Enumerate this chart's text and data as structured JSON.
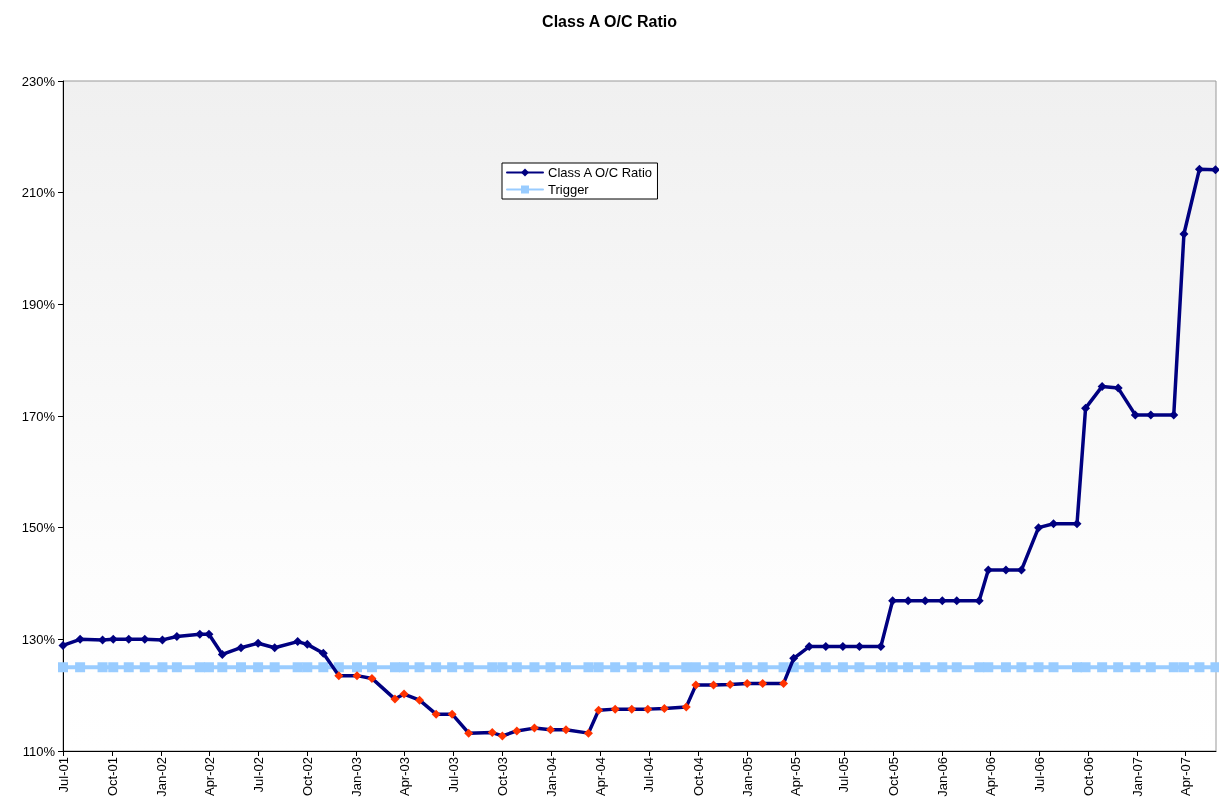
{
  "chart_data": {
    "type": "line",
    "title": "Class A O/C Ratio",
    "x": [
      "2001-07-01",
      "2001-08-02",
      "2001-09-13",
      "2001-10-03",
      "2001-11-01",
      "2001-12-01",
      "2002-01-03",
      "2002-01-30",
      "2002-03-14",
      "2002-03-31",
      "2002-04-25",
      "2002-05-30",
      "2002-07-01",
      "2002-08-01",
      "2002-09-13",
      "2002-10-01",
      "2002-10-31",
      "2002-11-29",
      "2003-01-02",
      "2003-01-30",
      "2003-03-14",
      "2003-03-31",
      "2003-04-29",
      "2003-05-30",
      "2003-06-29",
      "2003-07-30",
      "2003-09-12",
      "2003-10-01",
      "2003-10-28",
      "2003-11-30",
      "2003-12-30",
      "2004-01-28",
      "2004-03-10",
      "2004-03-29",
      "2004-04-29",
      "2004-05-30",
      "2004-06-29",
      "2004-07-30",
      "2004-09-09",
      "2004-09-27",
      "2004-10-30",
      "2004-11-30",
      "2005-01-01",
      "2005-01-30",
      "2005-03-10",
      "2005-03-29",
      "2005-04-27",
      "2005-05-28",
      "2005-06-29",
      "2005-07-30",
      "2005-09-08",
      "2005-09-30",
      "2005-10-29",
      "2005-11-30",
      "2006-01-01",
      "2006-01-28",
      "2006-03-11",
      "2006-03-28",
      "2006-04-30",
      "2006-05-29",
      "2006-06-30",
      "2006-07-28",
      "2006-09-10",
      "2006-09-26",
      "2006-10-27",
      "2006-11-26",
      "2006-12-28",
      "2007-01-26",
      "2007-03-10",
      "2007-03-29",
      "2007-04-27",
      "2007-05-27"
    ],
    "series": [
      {
        "name": "Class A O/C Ratio",
        "color": "#000080",
        "marker": "diamond",
        "values": [
          128.9,
          130.0,
          129.9,
          130.0,
          130.0,
          130.0,
          129.9,
          130.5,
          130.9,
          130.9,
          127.3,
          128.5,
          129.3,
          128.5,
          129.6,
          129.1,
          127.5,
          123.5,
          123.5,
          123.0,
          119.3,
          120.2,
          119.1,
          116.6,
          116.6,
          113.2,
          113.3,
          112.7,
          113.6,
          114.1,
          113.8,
          113.8,
          113.2,
          117.3,
          117.5,
          117.5,
          117.5,
          117.6,
          117.9,
          121.8,
          121.8,
          121.9,
          122.1,
          122.1,
          122.1,
          126.6,
          128.7,
          128.7,
          128.7,
          128.7,
          128.7,
          136.9,
          136.9,
          136.9,
          136.9,
          136.9,
          136.9,
          142.4,
          142.4,
          142.4,
          150.0,
          150.7,
          150.7,
          171.4,
          175.3,
          175.0,
          170.2,
          170.2,
          170.2,
          202.6,
          214.2,
          214.1
        ],
        "colors": [
          "#000080",
          "#000080",
          "#000080",
          "#000080",
          "#000080",
          "#000080",
          "#000080",
          "#000080",
          "#000080",
          "#000080",
          "#000080",
          "#000080",
          "#000080",
          "#000080",
          "#000080",
          "#000080",
          "#000080",
          "#ff3300",
          "#ff3300",
          "#ff3300",
          "#ff3300",
          "#ff3300",
          "#ff3300",
          "#ff3300",
          "#ff3300",
          "#ff3300",
          "#ff3300",
          "#ff3300",
          "#ff3300",
          "#ff3300",
          "#ff3300",
          "#ff3300",
          "#ff3300",
          "#ff3300",
          "#ff3300",
          "#ff3300",
          "#ff3300",
          "#ff3300",
          "#ff3300",
          "#ff3300",
          "#ff3300",
          "#ff3300",
          "#ff3300",
          "#ff3300",
          "#ff3300",
          "#000080",
          "#000080",
          "#000080",
          "#000080",
          "#000080",
          "#000080",
          "#000080",
          "#000080",
          "#000080",
          "#000080",
          "#000080",
          "#000080",
          "#000080",
          "#000080",
          "#000080",
          "#000080",
          "#000080",
          "#000080",
          "#000080",
          "#000080",
          "#000080",
          "#000080",
          "#000080",
          "#000080",
          "#000080",
          "#000080",
          "#000080"
        ]
      },
      {
        "name": "Trigger",
        "color": "#99ccff",
        "marker": "square",
        "values": [
          125,
          125,
          125,
          125,
          125,
          125,
          125,
          125,
          125,
          125,
          125,
          125,
          125,
          125,
          125,
          125,
          125,
          125,
          125,
          125,
          125,
          125,
          125,
          125,
          125,
          125,
          125,
          125,
          125,
          125,
          125,
          125,
          125,
          125,
          125,
          125,
          125,
          125,
          125,
          125,
          125,
          125,
          125,
          125,
          125,
          125,
          125,
          125,
          125,
          125,
          125,
          125,
          125,
          125,
          125,
          125,
          125,
          125,
          125,
          125,
          125,
          125,
          125,
          125,
          125,
          125,
          125,
          125,
          125,
          125,
          125,
          125
        ]
      }
    ],
    "xlim": [
      "2001-07-01",
      "2007-05-28"
    ],
    "xticks": [
      {
        "value": "2001-07-01",
        "label": "Jul-01"
      },
      {
        "value": "2001-10-01",
        "label": "Oct-01"
      },
      {
        "value": "2002-01-01",
        "label": "Jan-02"
      },
      {
        "value": "2002-04-01",
        "label": "Apr-02"
      },
      {
        "value": "2002-07-01",
        "label": "Jul-02"
      },
      {
        "value": "2002-10-01",
        "label": "Oct-02"
      },
      {
        "value": "2003-01-01",
        "label": "Jan-03"
      },
      {
        "value": "2003-04-01",
        "label": "Apr-03"
      },
      {
        "value": "2003-07-01",
        "label": "Jul-03"
      },
      {
        "value": "2003-10-01",
        "label": "Oct-03"
      },
      {
        "value": "2004-01-01",
        "label": "Jan-04"
      },
      {
        "value": "2004-04-01",
        "label": "Apr-04"
      },
      {
        "value": "2004-07-01",
        "label": "Jul-04"
      },
      {
        "value": "2004-10-01",
        "label": "Oct-04"
      },
      {
        "value": "2005-01-01",
        "label": "Jan-05"
      },
      {
        "value": "2005-04-01",
        "label": "Apr-05"
      },
      {
        "value": "2005-07-01",
        "label": "Jul-05"
      },
      {
        "value": "2005-10-01",
        "label": "Oct-05"
      },
      {
        "value": "2006-01-01",
        "label": "Jan-06"
      },
      {
        "value": "2006-04-01",
        "label": "Apr-06"
      },
      {
        "value": "2006-07-01",
        "label": "Jul-06"
      },
      {
        "value": "2006-10-01",
        "label": "Oct-06"
      },
      {
        "value": "2007-01-01",
        "label": "Jan-07"
      },
      {
        "value": "2007-04-01",
        "label": "Apr-07"
      }
    ],
    "ylim": [
      110,
      230
    ],
    "yticks": [
      {
        "value": 110,
        "label": "110%"
      },
      {
        "value": 130,
        "label": "130%"
      },
      {
        "value": 150,
        "label": "150%"
      },
      {
        "value": 170,
        "label": "170%"
      },
      {
        "value": 190,
        "label": "190%"
      },
      {
        "value": 210,
        "label": "210%"
      },
      {
        "value": 230,
        "label": "230%"
      }
    ],
    "grid": false,
    "legend": "top",
    "line_style": "solid"
  }
}
